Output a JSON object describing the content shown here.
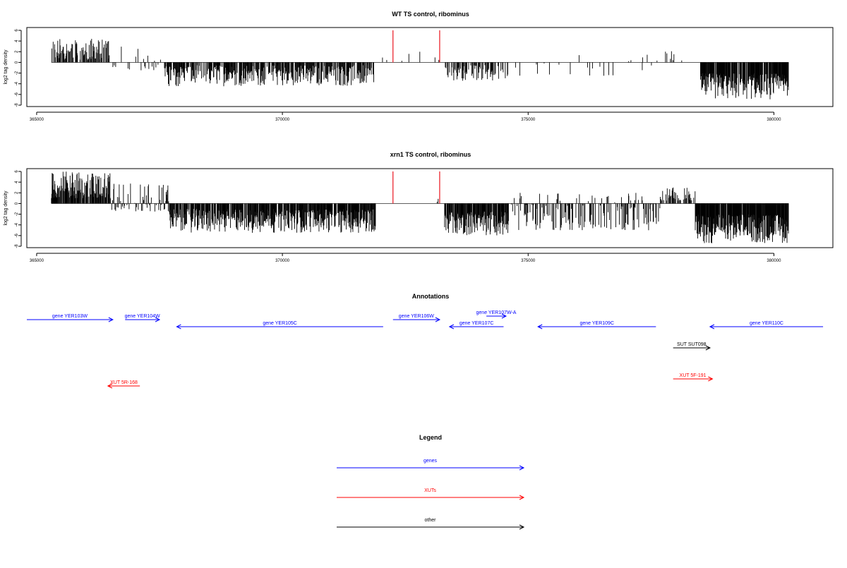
{
  "chart_data": [
    {
      "type": "bar",
      "title": "WT TS control, ribominus",
      "xlabel": "",
      "ylabel": "log2 tag density",
      "xlim": [
        364800,
        381200
      ],
      "ylim": [
        -8,
        6
      ],
      "xticks": [
        365000,
        370000,
        375000,
        380000
      ],
      "xtick_labels": [
        "365000",
        "370000",
        "375000",
        "380000"
      ],
      "yticks": [
        6,
        4,
        2,
        0,
        -2,
        -4,
        -6,
        -8
      ],
      "ytick_labels": [
        "6",
        "4",
        "2",
        "0",
        "-2",
        "-4",
        "-6",
        "-8"
      ],
      "colors": {
        "bars": "#000000",
        "highlight": "#e8000b"
      },
      "highlights": [
        {
          "x": 372250,
          "y": 6
        },
        {
          "x": 373200,
          "y": 6
        }
      ],
      "segments": [
        {
          "from": 365300,
          "to": 366500,
          "min": 0.5,
          "max": 4.5,
          "density": 0.55
        },
        {
          "from": 366500,
          "to": 367600,
          "min": -1.5,
          "max": 3,
          "density": 0.1
        },
        {
          "from": 367600,
          "to": 371900,
          "min": -4.5,
          "max": -0.5,
          "density": 0.6
        },
        {
          "from": 371900,
          "to": 372250,
          "min": 0.2,
          "max": 1.5,
          "density": 0.05
        },
        {
          "from": 372250,
          "to": 373200,
          "min": 0.3,
          "max": 2.2,
          "density": 0.04
        },
        {
          "from": 373300,
          "to": 374600,
          "min": -3.5,
          "max": -0.5,
          "density": 0.45
        },
        {
          "from": 374600,
          "to": 377600,
          "min": -2.5,
          "max": 1.5,
          "density": 0.06
        },
        {
          "from": 377600,
          "to": 378200,
          "min": 0.3,
          "max": 2.2,
          "density": 0.1
        },
        {
          "from": 378500,
          "to": 380300,
          "min": -7,
          "max": -2,
          "density": 0.85
        }
      ]
    },
    {
      "type": "bar",
      "title": "xrn1 TS control, ribominus",
      "xlabel": "",
      "ylabel": "log2 tag density",
      "xlim": [
        364800,
        381200
      ],
      "ylim": [
        -8,
        6
      ],
      "xticks": [
        365000,
        370000,
        375000,
        380000
      ],
      "xtick_labels": [
        "365000",
        "370000",
        "375000",
        "380000"
      ],
      "yticks": [
        6,
        4,
        2,
        0,
        -2,
        -4,
        -6,
        -8
      ],
      "ytick_labels": [
        "6",
        "4",
        "2",
        "0",
        "-2",
        "-4",
        "-6",
        "-8"
      ],
      "colors": {
        "bars": "#000000",
        "highlight": "#e8000b"
      },
      "highlights": [
        {
          "x": 372250,
          "y": 6
        },
        {
          "x": 373200,
          "y": 6
        }
      ],
      "segments": [
        {
          "from": 365300,
          "to": 366500,
          "min": 1,
          "max": 6,
          "density": 0.75
        },
        {
          "from": 366500,
          "to": 367700,
          "min": -1.5,
          "max": 4,
          "density": 0.35
        },
        {
          "from": 367700,
          "to": 371900,
          "min": -5.5,
          "max": -1,
          "density": 0.75
        },
        {
          "from": 372250,
          "to": 373200,
          "min": 0.3,
          "max": 2,
          "density": 0.03
        },
        {
          "from": 373300,
          "to": 374600,
          "min": -6,
          "max": -1.5,
          "density": 0.8
        },
        {
          "from": 374600,
          "to": 377700,
          "min": -5,
          "max": 2,
          "density": 0.35
        },
        {
          "from": 377700,
          "to": 378400,
          "min": 0.5,
          "max": 3,
          "density": 0.35
        },
        {
          "from": 378400,
          "to": 380300,
          "min": -7.5,
          "max": -2,
          "density": 0.9
        }
      ]
    }
  ],
  "annotations": {
    "title": "Annotations",
    "items": [
      {
        "label": "gene YER103W",
        "from": 364500,
        "to": 366550,
        "strand": "+",
        "track": 0,
        "kind": "gene"
      },
      {
        "label": "gene YER104W",
        "from": 366800,
        "to": 367500,
        "strand": "+",
        "track": 0,
        "kind": "gene"
      },
      {
        "label": "gene YER105C",
        "from": 367850,
        "to": 372050,
        "strand": "-",
        "track": 1,
        "kind": "gene"
      },
      {
        "label": "gene YER106W",
        "from": 372250,
        "to": 373200,
        "strand": "+",
        "track": 0,
        "kind": "gene"
      },
      {
        "label": "gene YER107W-A",
        "from": 374150,
        "to": 374550,
        "strand": "+",
        "track": -0.5,
        "kind": "gene"
      },
      {
        "label": "gene YER107C",
        "from": 373400,
        "to": 374500,
        "strand": "-",
        "track": 1,
        "kind": "gene"
      },
      {
        "label": "gene YER109C",
        "from": 375200,
        "to": 377600,
        "strand": "-",
        "track": 1,
        "kind": "gene"
      },
      {
        "label": "gene YER110C",
        "from": 378700,
        "to": 381000,
        "strand": "-",
        "track": 1,
        "kind": "gene"
      },
      {
        "label": "SUT SUT098",
        "from": 377950,
        "to": 378700,
        "strand": "+",
        "track": 4,
        "kind": "other"
      },
      {
        "label": "XUT 5F-191",
        "from": 377950,
        "to": 378750,
        "strand": "+",
        "track": 8.4,
        "kind": "xut"
      },
      {
        "label": "XUT 5R-168",
        "from": 366450,
        "to": 367100,
        "strand": "-",
        "track": 9.4,
        "kind": "xut"
      }
    ]
  },
  "legend": {
    "title": "Legend",
    "items": [
      {
        "label": "genes",
        "kind": "gene"
      },
      {
        "label": "XUTs",
        "kind": "xut"
      },
      {
        "label": "other",
        "kind": "other"
      }
    ]
  },
  "colors": {
    "gene": "#0000ff",
    "xut": "#ff0000",
    "other": "#000000"
  }
}
